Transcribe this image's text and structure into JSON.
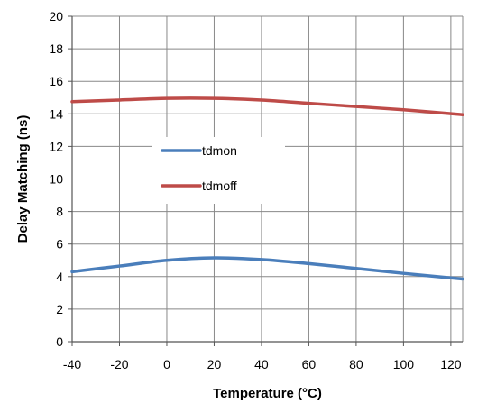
{
  "chart_data": {
    "type": "line",
    "title": "",
    "xlabel": "Temperature (°C)",
    "ylabel": "Delay Matching (ns)",
    "xlim": [
      -40,
      125
    ],
    "ylim": [
      0,
      20
    ],
    "xticks": [
      -40,
      -20,
      0,
      20,
      40,
      60,
      80,
      100,
      120
    ],
    "yticks": [
      0,
      2,
      4,
      6,
      8,
      10,
      12,
      14,
      16,
      18,
      20
    ],
    "grid": true,
    "legend_position": "center-left",
    "series": [
      {
        "name": "tdmon",
        "color": "#4a7ebb",
        "x": [
          -40,
          -20,
          0,
          20,
          40,
          60,
          80,
          100,
          125
        ],
        "y": [
          4.3,
          4.65,
          5.0,
          5.15,
          5.05,
          4.8,
          4.5,
          4.2,
          3.85
        ]
      },
      {
        "name": "tdmoff",
        "color": "#be4b48",
        "x": [
          -40,
          -20,
          0,
          20,
          40,
          60,
          80,
          100,
          125
        ],
        "y": [
          14.75,
          14.85,
          14.95,
          14.95,
          14.85,
          14.65,
          14.45,
          14.25,
          13.95
        ]
      }
    ]
  }
}
